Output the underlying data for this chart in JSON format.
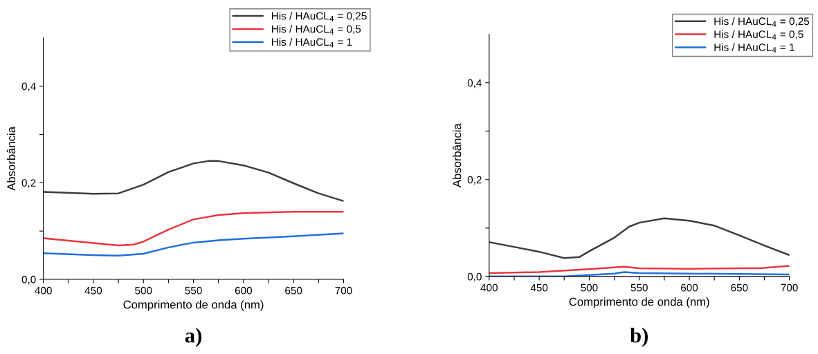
{
  "chart_data": [
    {
      "type": "line",
      "xlabel": "Comprimento de onda (nm)",
      "ylabel": "Absorbância",
      "annotations": [
        "a)"
      ],
      "xlim": [
        400,
        700
      ],
      "ylim": [
        0,
        0.5
      ],
      "xticks": [
        400,
        {
          "value": 425,
          "label": null
        },
        450,
        {
          "value": 475,
          "label": null
        },
        500,
        {
          "value": 525,
          "label": null
        },
        550,
        {
          "value": 575,
          "label": null
        },
        600,
        {
          "value": 625,
          "label": null
        },
        650,
        {
          "value": 675,
          "label": null
        },
        700
      ],
      "yticks": [
        {
          "value": 0,
          "label": "0,0"
        },
        {
          "value": 0.1,
          "label": null
        },
        {
          "value": 0.2,
          "label": "0,2"
        },
        {
          "value": 0.3,
          "label": null
        },
        {
          "value": 0.4,
          "label": "0,4"
        }
      ],
      "legend": "top right",
      "grid": false,
      "line_style": "solid",
      "marker": "none",
      "series": [
        {
          "name": "His / HAuCL$_{4}$ = 0,25",
          "color": "#3c3c3c",
          "x": [
            400,
            450,
            475,
            500,
            525,
            550,
            565,
            575,
            600,
            625,
            650,
            675,
            700
          ],
          "values": [
            0.181,
            0.177,
            0.178,
            0.196,
            0.222,
            0.24,
            0.245,
            0.245,
            0.236,
            0.221,
            0.199,
            0.178,
            0.162
          ]
        },
        {
          "name": "His / HAuCL$_{4}$ = 0,5",
          "color": "#e8373d",
          "x": [
            400,
            450,
            475,
            490,
            500,
            525,
            550,
            575,
            600,
            650,
            700
          ],
          "values": [
            0.085,
            0.075,
            0.07,
            0.072,
            0.078,
            0.103,
            0.124,
            0.133,
            0.137,
            0.14,
            0.14
          ]
        },
        {
          "name": "His / HAuCL$_{4}$ = 1",
          "color": "#1f6fdc",
          "x": [
            400,
            450,
            475,
            500,
            525,
            550,
            575,
            600,
            650,
            700
          ],
          "values": [
            0.054,
            0.05,
            0.049,
            0.053,
            0.066,
            0.076,
            0.081,
            0.084,
            0.089,
            0.095
          ]
        }
      ]
    },
    {
      "type": "line",
      "xlabel": "Comprimento de onda (nm)",
      "ylabel": "Absorbância",
      "annotations": [
        "b)"
      ],
      "xlim": [
        400,
        700
      ],
      "ylim": [
        0,
        0.5
      ],
      "xticks": [
        400,
        {
          "value": 425,
          "label": null
        },
        450,
        {
          "value": 475,
          "label": null
        },
        500,
        {
          "value": 525,
          "label": null
        },
        550,
        {
          "value": 575,
          "label": null
        },
        600,
        {
          "value": 625,
          "label": null
        },
        650,
        {
          "value": 675,
          "label": null
        },
        700
      ],
      "yticks": [
        {
          "value": 0,
          "label": "0,0"
        },
        {
          "value": 0.1,
          "label": null
        },
        {
          "value": 0.2,
          "label": "0,2"
        },
        {
          "value": 0.3,
          "label": null
        },
        {
          "value": 0.4,
          "label": "0,4"
        }
      ],
      "legend": "top right",
      "grid": false,
      "line_style": "solid",
      "marker": "none",
      "series": [
        {
          "name": "His / HAuCL$_{4}$ = 0,25",
          "color": "#3c3c3c",
          "x": [
            400,
            425,
            450,
            475,
            490,
            500,
            525,
            540,
            550,
            575,
            600,
            625,
            650,
            675,
            700
          ],
          "values": [
            0.071,
            0.061,
            0.051,
            0.038,
            0.04,
            0.052,
            0.08,
            0.103,
            0.111,
            0.12,
            0.115,
            0.105,
            0.085,
            0.064,
            0.044
          ]
        },
        {
          "name": "His / HAuCL$_{4}$ = 0,5",
          "color": "#e8373d",
          "x": [
            400,
            450,
            500,
            535,
            550,
            600,
            650,
            670,
            700
          ],
          "values": [
            0.007,
            0.009,
            0.015,
            0.02,
            0.017,
            0.016,
            0.017,
            0.017,
            0.022
          ]
        },
        {
          "name": "His / HAuCL$_{4}$ = 1",
          "color": "#1f6fdc",
          "x": [
            400,
            450,
            475,
            500,
            525,
            535,
            550,
            600,
            650,
            700
          ],
          "values": [
            0.0,
            0.0,
            0.0,
            0.003,
            0.006,
            0.009,
            0.007,
            0.006,
            0.005,
            0.004
          ]
        }
      ]
    }
  ]
}
